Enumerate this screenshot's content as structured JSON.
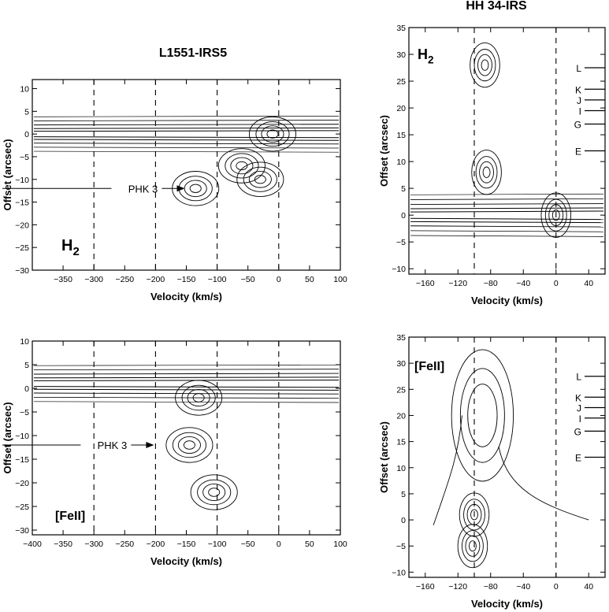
{
  "figure": {
    "left_column_title": "L1551-IRS5",
    "right_column_title": "HH 34-IRS"
  },
  "chart_data": [
    {
      "type": "contour",
      "id": "l1551-h2",
      "line": "H2",
      "xlabel": "Velocity (km/s)",
      "ylabel": "Offset (arcsec)",
      "xlim": [
        -400,
        100
      ],
      "ylim": [
        -30,
        12
      ],
      "xticks": [
        -350,
        -300,
        -250,
        -200,
        -150,
        -100,
        -50,
        0,
        50,
        100
      ],
      "yticks": [
        10,
        5,
        0,
        -5,
        -10,
        -15,
        -20,
        -25,
        -30
      ],
      "dashed_velocities": [
        -300,
        -200,
        -100,
        0
      ],
      "annotations": [
        {
          "text": "PHK 3",
          "x": -150,
          "y": -12
        }
      ],
      "features": [
        {
          "type": "continuum",
          "y": 0
        },
        {
          "type": "knot",
          "x": -10,
          "y": 0
        },
        {
          "type": "knot",
          "x": -135,
          "y": -12
        },
        {
          "type": "knot",
          "x": -60,
          "y": -7
        },
        {
          "type": "knot",
          "x": -30,
          "y": -10
        }
      ]
    },
    {
      "type": "contour",
      "id": "l1551-feii",
      "line": "[FeII]",
      "xlabel": "Velocity (km/s)",
      "ylabel": "Offset (arcsec)",
      "xlim": [
        -400,
        100
      ],
      "ylim": [
        -31,
        10
      ],
      "xticks": [
        -400,
        -350,
        -300,
        -250,
        -200,
        -150,
        -100,
        -50,
        0,
        50,
        100
      ],
      "yticks": [
        10,
        5,
        0,
        -5,
        -10,
        -15,
        -20,
        -25,
        -30
      ],
      "dashed_velocities": [
        -300,
        -200,
        -100,
        0
      ],
      "annotations": [
        {
          "text": "PHK 3",
          "x": -200,
          "y": -12
        }
      ],
      "features": [
        {
          "type": "continuum",
          "y": 1
        },
        {
          "type": "knot",
          "x": -130,
          "y": -2
        },
        {
          "type": "knot",
          "x": -145,
          "y": -12
        },
        {
          "type": "knot",
          "x": -105,
          "y": -22
        }
      ]
    },
    {
      "type": "contour",
      "id": "hh34-h2",
      "line": "H2",
      "xlabel": "Velocity (km/s)",
      "ylabel": "Offset (arcsec)",
      "xlim": [
        -180,
        60
      ],
      "ylim": [
        -11,
        35
      ],
      "xticks": [
        -160,
        -120,
        -80,
        -40,
        0,
        40
      ],
      "yticks": [
        35,
        30,
        25,
        20,
        15,
        10,
        5,
        0,
        -5,
        -10
      ],
      "dashed_velocities": [
        -100,
        0
      ],
      "knot_markers": [
        {
          "label": "L",
          "y": 27.5
        },
        {
          "label": "K",
          "y": 23.5
        },
        {
          "label": "J",
          "y": 21.5
        },
        {
          "label": "I",
          "y": 19.5
        },
        {
          "label": "G",
          "y": 17
        },
        {
          "label": "E",
          "y": 12
        }
      ],
      "features": [
        {
          "type": "continuum",
          "y": 0
        },
        {
          "type": "knot",
          "x": -87,
          "y": 28
        },
        {
          "type": "knot",
          "x": -85,
          "y": 8
        },
        {
          "type": "knot",
          "x": 0,
          "y": 0
        }
      ]
    },
    {
      "type": "contour",
      "id": "hh34-feii",
      "line": "[FeII]",
      "xlabel": "Velocity (km/s)",
      "ylabel": "Offset (arcsec)",
      "xlim": [
        -180,
        60
      ],
      "ylim": [
        -11,
        35
      ],
      "xticks": [
        -160,
        -120,
        -80,
        -40,
        0,
        40
      ],
      "yticks": [
        35,
        30,
        25,
        20,
        15,
        10,
        5,
        0,
        -5,
        -10
      ],
      "dashed_velocities": [
        -100,
        0
      ],
      "knot_markers": [
        {
          "label": "L",
          "y": 27.5
        },
        {
          "label": "K",
          "y": 23.5
        },
        {
          "label": "J",
          "y": 21.5
        },
        {
          "label": "I",
          "y": 19.5
        },
        {
          "label": "G",
          "y": 17
        },
        {
          "label": "E",
          "y": 12
        }
      ],
      "features": [
        {
          "type": "knot",
          "x": -100,
          "y": 1
        },
        {
          "type": "jet",
          "x": -90,
          "y": 20
        },
        {
          "type": "knot",
          "x": -102,
          "y": -5
        }
      ]
    }
  ]
}
